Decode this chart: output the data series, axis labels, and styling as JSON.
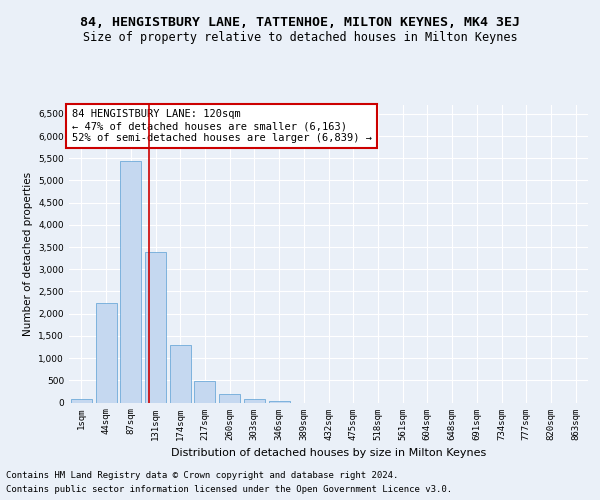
{
  "title1": "84, HENGISTBURY LANE, TATTENHOE, MILTON KEYNES, MK4 3EJ",
  "title2": "Size of property relative to detached houses in Milton Keynes",
  "xlabel": "Distribution of detached houses by size in Milton Keynes",
  "ylabel": "Number of detached properties",
  "categories": [
    "1sqm",
    "44sqm",
    "87sqm",
    "131sqm",
    "174sqm",
    "217sqm",
    "260sqm",
    "303sqm",
    "346sqm",
    "389sqm",
    "432sqm",
    "475sqm",
    "518sqm",
    "561sqm",
    "604sqm",
    "648sqm",
    "691sqm",
    "734sqm",
    "777sqm",
    "820sqm",
    "863sqm"
  ],
  "bar_values": [
    75,
    2250,
    5440,
    3380,
    1290,
    490,
    185,
    75,
    30,
    0,
    0,
    0,
    0,
    0,
    0,
    0,
    0,
    0,
    0,
    0,
    0
  ],
  "bar_color": "#c5d8f0",
  "bar_edge_color": "#5a9fd4",
  "vline_x": 2.73,
  "vline_color": "#cc0000",
  "annotation_text": "84 HENGISTBURY LANE: 120sqm\n← 47% of detached houses are smaller (6,163)\n52% of semi-detached houses are larger (6,839) →",
  "annotation_box_color": "#ffffff",
  "annotation_box_edge": "#cc0000",
  "ylim": [
    0,
    6700
  ],
  "yticks": [
    0,
    500,
    1000,
    1500,
    2000,
    2500,
    3000,
    3500,
    4000,
    4500,
    5000,
    5500,
    6000,
    6500
  ],
  "footer1": "Contains HM Land Registry data © Crown copyright and database right 2024.",
  "footer2": "Contains public sector information licensed under the Open Government Licence v3.0.",
  "bg_color": "#eaf0f8",
  "plot_bg_color": "#eaf0f8",
  "grid_color": "#ffffff",
  "title1_fontsize": 9.5,
  "title2_fontsize": 8.5,
  "xlabel_fontsize": 8,
  "ylabel_fontsize": 7.5,
  "tick_fontsize": 6.5,
  "annot_fontsize": 7.5,
  "footer_fontsize": 6.5
}
